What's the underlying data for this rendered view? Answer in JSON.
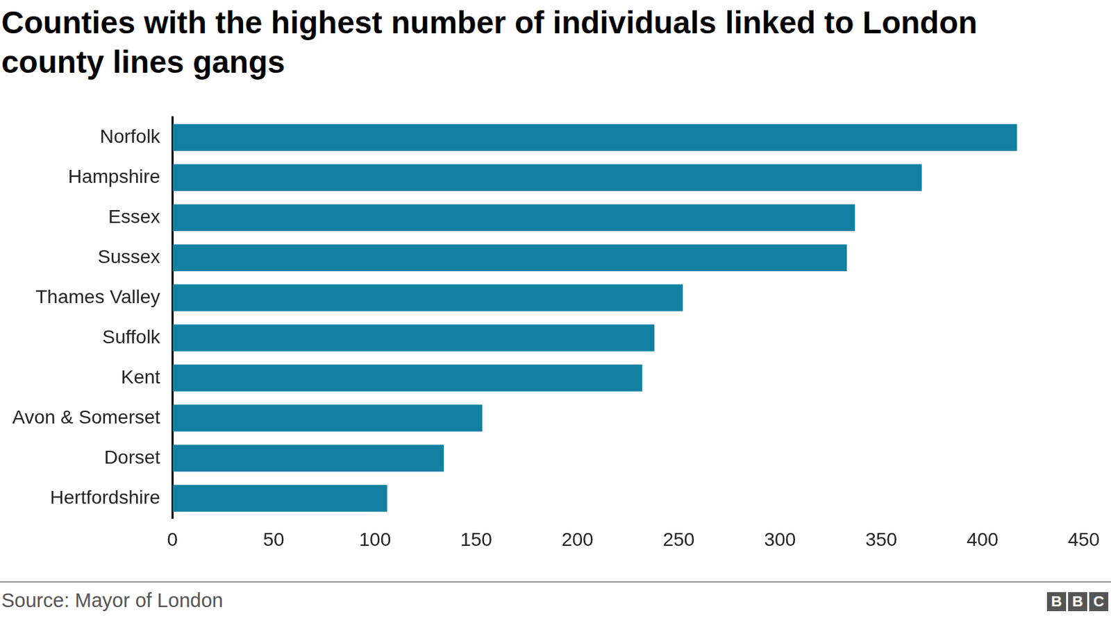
{
  "chart_data": {
    "type": "bar",
    "orientation": "horizontal",
    "title": "Counties with the highest number of individuals linked to London county lines gangs",
    "source": "Source: Mayor of London",
    "logo": "BBC",
    "categories": [
      "Norfolk",
      "Hampshire",
      "Essex",
      "Sussex",
      "Thames Valley",
      "Suffolk",
      "Kent",
      "Avon & Somerset",
      "Dorset",
      "Hertfordshire"
    ],
    "values": [
      417,
      370,
      337,
      333,
      252,
      238,
      232,
      153,
      134,
      106
    ],
    "color": "#1380a1",
    "xlim": [
      0,
      450
    ],
    "xticks": [
      0,
      50,
      100,
      150,
      200,
      250,
      300,
      350,
      400,
      450
    ],
    "grid": false
  }
}
